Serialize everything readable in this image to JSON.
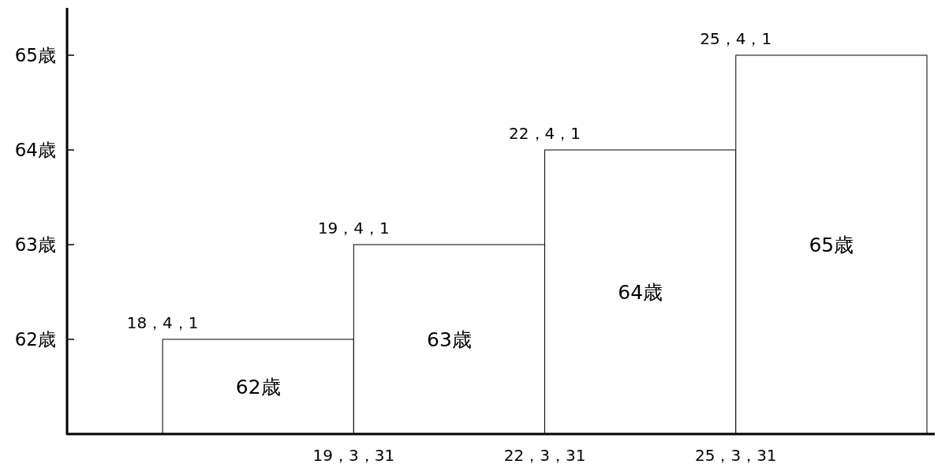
{
  "chart_data": {
    "type": "bar",
    "categories": [
      null,
      null,
      null,
      null
    ],
    "values": [
      62,
      63,
      64,
      65
    ],
    "value_labels": [
      "62歳",
      "63歳",
      "64歳",
      "65歳"
    ],
    "color": "#ffffff",
    "ylim": [
      61,
      65.5
    ],
    "yticks": [
      {
        "value": 62,
        "label": "62歳"
      },
      {
        "value": 63,
        "label": "63歳"
      },
      {
        "value": 64,
        "label": "64歳"
      },
      {
        "value": 65,
        "label": "65歳"
      }
    ],
    "annotations": [
      "18，4，1",
      "19，4，1",
      "22，4，1",
      "25，4，1",
      "19，3，31",
      "22，3，31",
      "25，3，31"
    ]
  }
}
